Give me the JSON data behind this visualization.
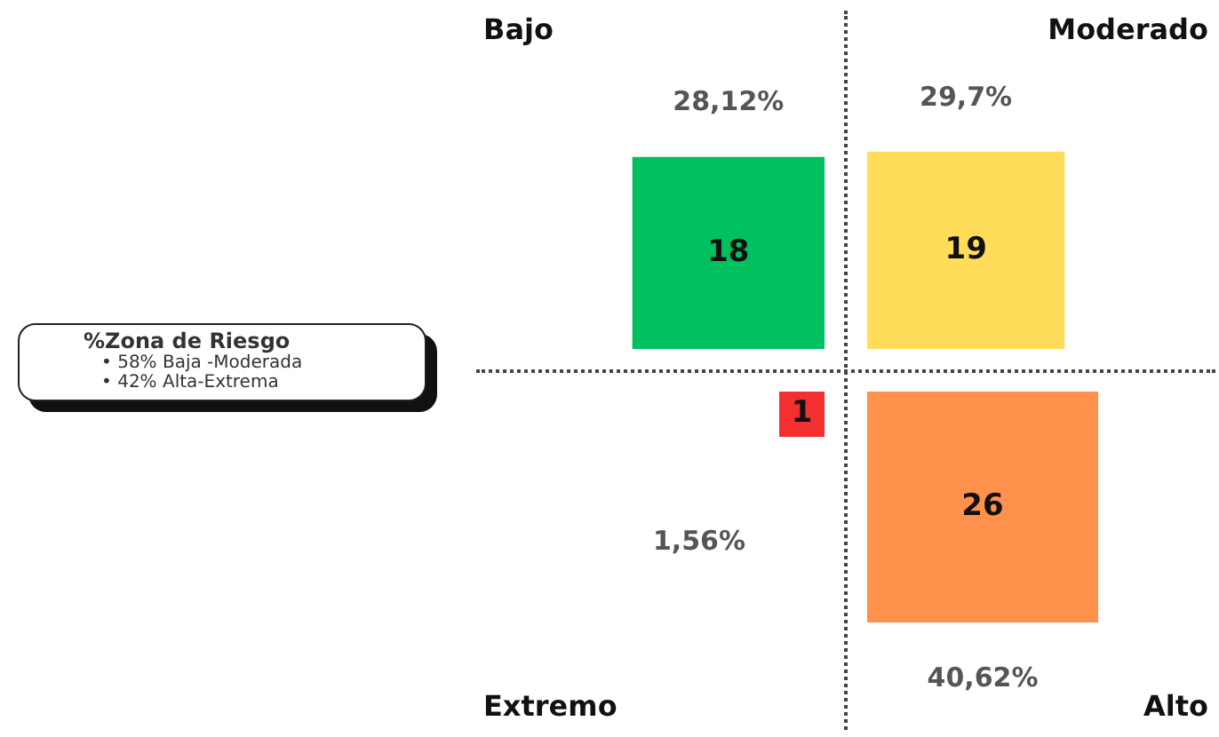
{
  "chart_data": {
    "type": "other",
    "categories": [
      "Bajo",
      "Moderado",
      "Extremo",
      "Alto"
    ],
    "values": [
      18,
      19,
      1,
      26
    ],
    "colors": [
      "#00c060",
      "#ffdc5a",
      "#f23030",
      "#ff914d"
    ],
    "data_labels": true,
    "annotations": [
      {
        "text": "28,12%",
        "x": "Bajo"
      },
      {
        "text": "29,7%",
        "x": "Moderado"
      },
      {
        "text": "1,56%",
        "x": "Extremo"
      },
      {
        "text": "40,62%",
        "x": "Alto"
      },
      "%Zona de Riesgo",
      "• 58% Baja -Moderada",
      "• 42% Alta-Extrema"
    ]
  }
}
